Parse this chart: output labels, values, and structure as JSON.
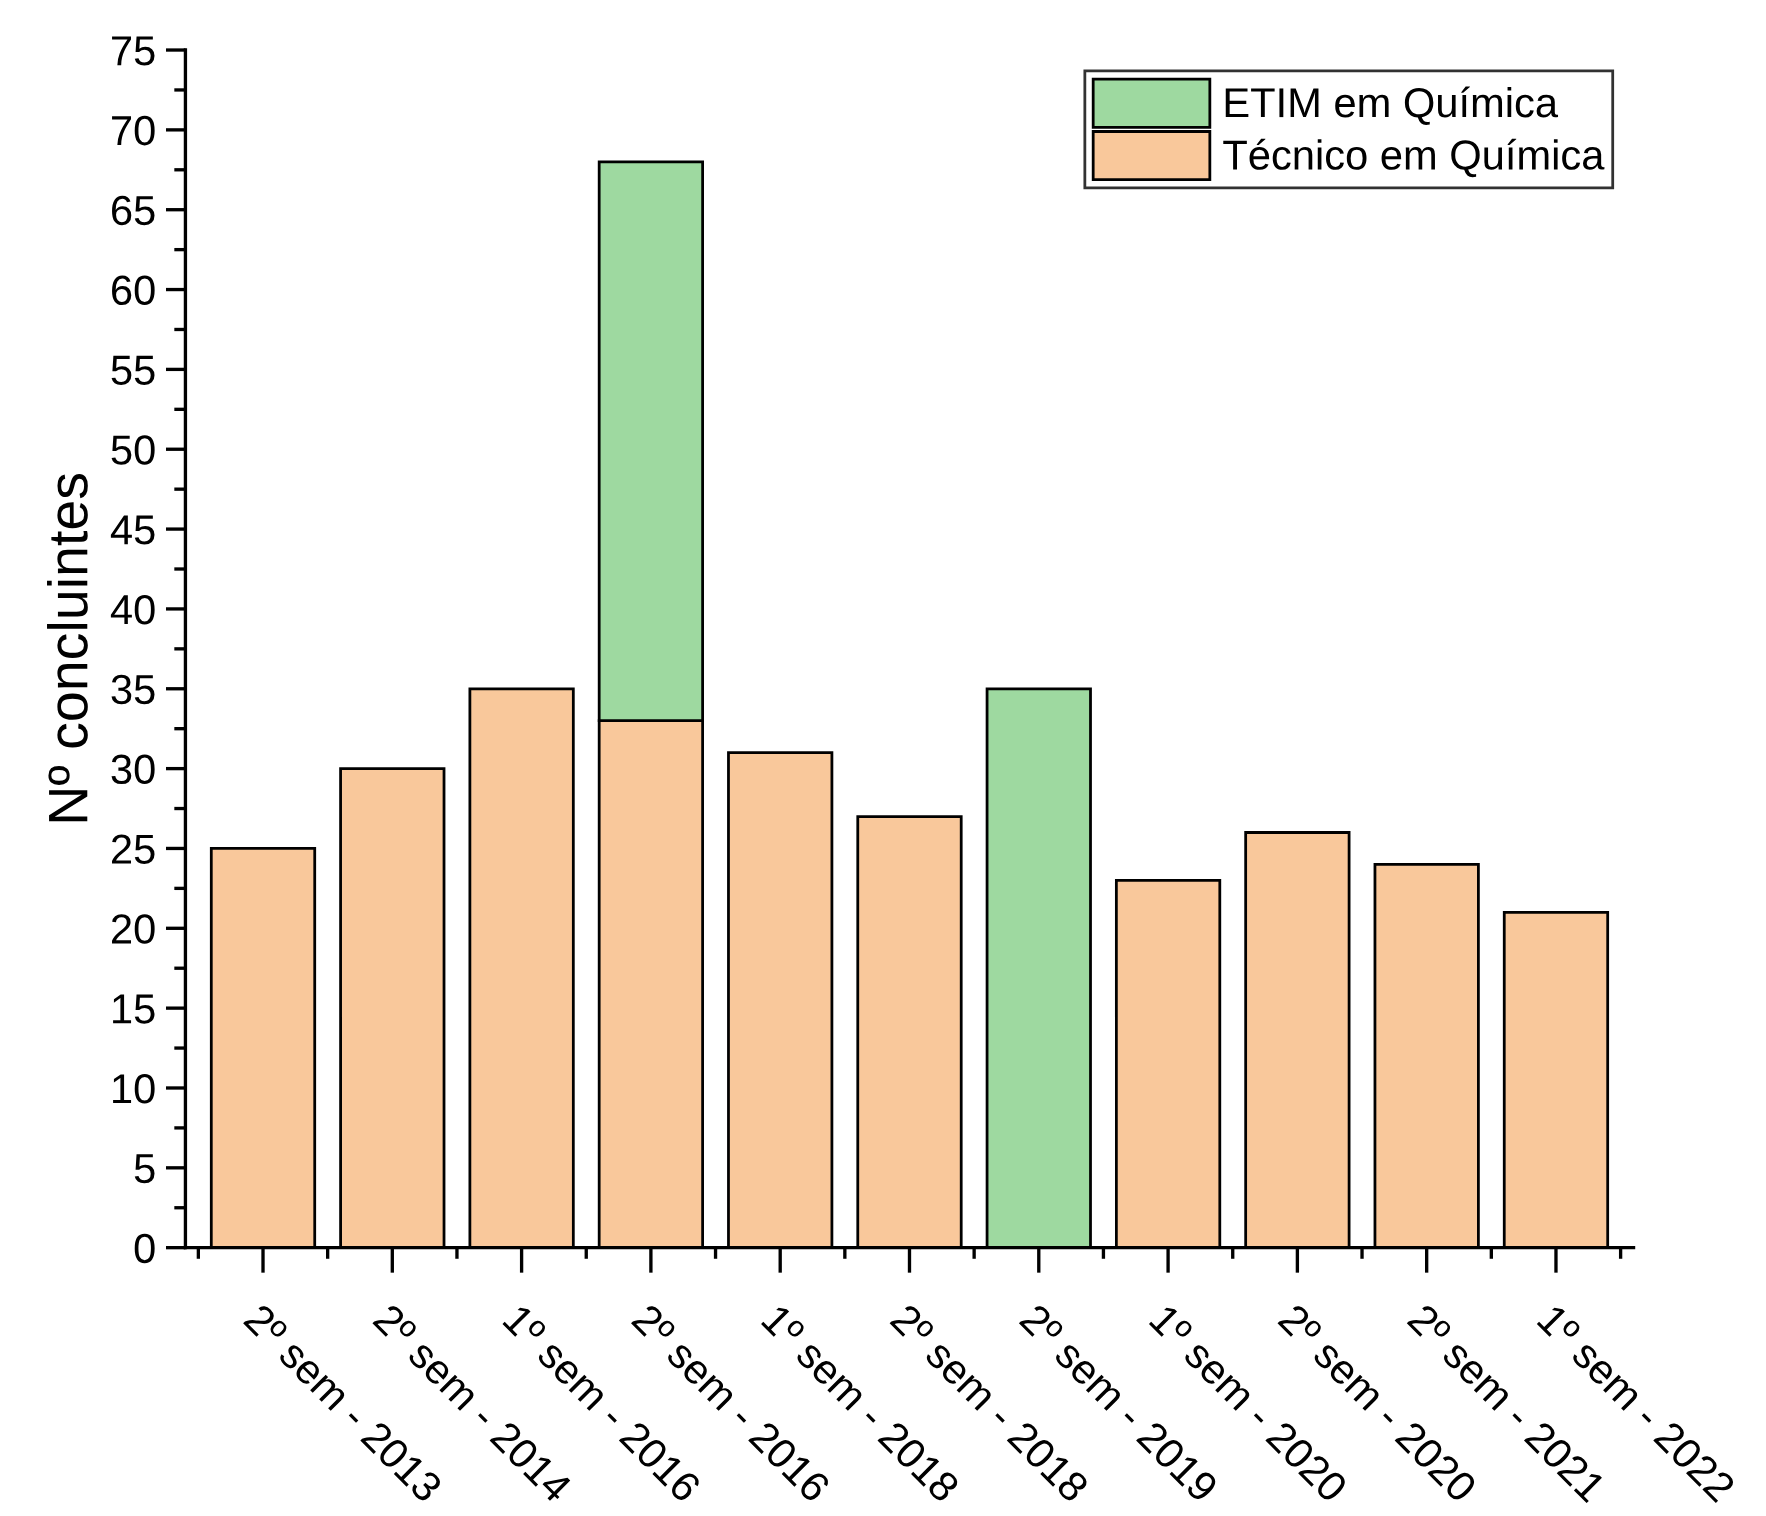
{
  "chart_data": {
    "type": "bar",
    "stacked": true,
    "ylabel": "Nº concluintes",
    "categories": [
      "2º sem - 2013",
      "2º sem - 2014",
      "1º sem - 2016",
      "2º sem - 2016",
      "1º sem - 2018",
      "2º sem - 2018",
      "2º sem - 2019",
      "1º sem - 2020",
      "2º sem - 2020",
      "2º sem - 2021",
      "1º sem - 2022"
    ],
    "series": [
      {
        "name": "Técnico em Química",
        "color": "#f9c89b",
        "values": [
          25,
          30,
          35,
          33,
          31,
          27,
          null,
          23,
          26,
          24,
          21
        ]
      },
      {
        "name": "ETIM em Química",
        "color": "#9ed9a0",
        "values": [
          null,
          null,
          null,
          35,
          null,
          null,
          35,
          null,
          null,
          null,
          null
        ]
      }
    ],
    "ylim": [
      0,
      75
    ],
    "yticks": [
      0,
      5,
      10,
      15,
      20,
      25,
      30,
      35,
      40,
      45,
      50,
      55,
      60,
      65,
      70,
      75
    ],
    "grid": false,
    "legend": "top right"
  }
}
